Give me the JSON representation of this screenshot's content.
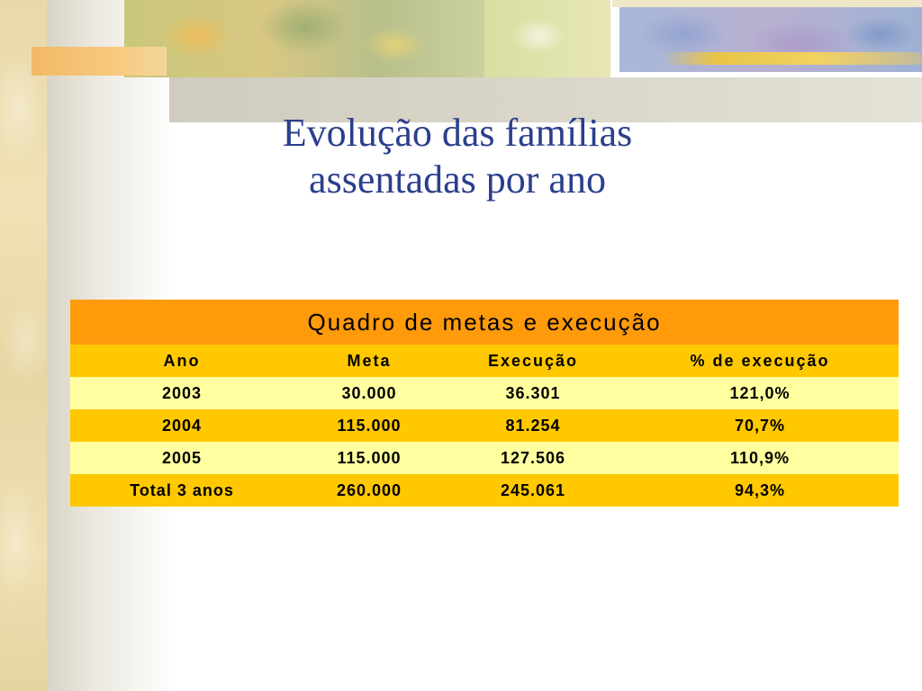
{
  "slide": {
    "title_line1": "Evolução das famílias",
    "title_line2": "assentadas por ano"
  },
  "table": {
    "caption": "Quadro de metas e execução",
    "headers": [
      "Ano",
      "Meta",
      "Execução",
      "% de execução"
    ],
    "rows": [
      [
        "2003",
        "30.000",
        "36.301",
        "121,0%"
      ],
      [
        "2004",
        "115.000",
        "81.254",
        "70,7%"
      ],
      [
        "2005",
        "115.000",
        "127.506",
        "110,9%"
      ],
      [
        "Total 3 anos",
        "260.000",
        "245.061",
        "94,3%"
      ]
    ]
  },
  "colors": {
    "title": "#2b3f8c",
    "caption_bg": "#ff9a0a",
    "header_bg": "#ffc800",
    "row_light_bg": "#ffff9f",
    "row_dark_bg": "#ffc800"
  }
}
